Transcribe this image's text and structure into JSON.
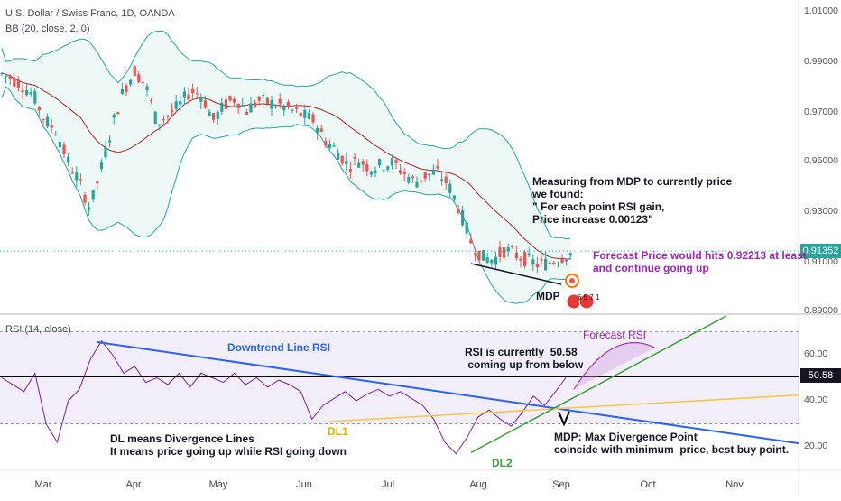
{
  "header": {
    "symbol_title": "U.S. Dollar / Swiss Franc, 1D, OANDA",
    "bb_label": "BB (20, close, 2, 0)",
    "rsi_label": "RSI (14, close)"
  },
  "price_axis": {
    "ticks": [
      "1.01000",
      "0.99000",
      "0.97000",
      "0.95000",
      "0.93000",
      "0.91000",
      "0.89000"
    ],
    "current_price": "0.91352",
    "current_price_color": "#26a69a"
  },
  "rsi_axis": {
    "ticks": [
      "60.00",
      "40.00",
      "20.00"
    ],
    "current_value": "50.58"
  },
  "time_axis": {
    "ticks": [
      "Mar",
      "Apr",
      "May",
      "Jun",
      "Jul",
      "Aug",
      "Sep",
      "Oct",
      "Nov"
    ]
  },
  "annotations": {
    "measuring": "Measuring from MDP to currently price\nwe found:\n\" For each point RSI gain,\nPrice increase 0.00123\"",
    "forecast_price": "Forecast Price would hits 0.92213 at least\nand continue going up",
    "mdp": "MDP",
    "downtrend": "Downtrend Line RSI",
    "forecast_rsi": "Forecast RSI",
    "rsi_current": "RSI is currently  50.58\n coming up from below",
    "dl_meaning": "DL means Divergence Lines\nIt means price going up while RSI going down",
    "dl1": "DL1",
    "dl2": "DL2",
    "mdp_meaning": "MDP: Max Divergence Point\ncoincide with minimum  price, best buy point.",
    "event_badge": "6 5 7 1"
  },
  "colors": {
    "up_candle": "#26a69a",
    "down_candle": "#ef5350",
    "bb_basis": "#a52a2a",
    "bb_band": "#26a69a",
    "rsi_line": "#7b1fa2",
    "downtrend": "#2962ff",
    "dl1": "#f9c642",
    "dl2": "#3a9d3a",
    "forecast": "#9c27b0"
  },
  "chart_data": [
    {
      "type": "candlestick",
      "title": "U.S. Dollar / Swiss Franc, 1D, OANDA",
      "ylim": [
        0.888,
        1.015
      ],
      "x_months": [
        "Mar",
        "Apr",
        "May",
        "Jun",
        "Jul",
        "Aug",
        "Sep",
        "Oct",
        "Nov"
      ],
      "close_path": [
        0.985,
        0.983,
        0.98,
        0.976,
        0.966,
        0.962,
        0.95,
        0.942,
        0.931,
        0.946,
        0.964,
        0.978,
        0.986,
        0.98,
        0.965,
        0.968,
        0.972,
        0.978,
        0.976,
        0.966,
        0.972,
        0.975,
        0.97,
        0.974,
        0.973,
        0.972,
        0.97,
        0.968,
        0.966,
        0.958,
        0.954,
        0.948,
        0.95,
        0.947,
        0.948,
        0.949,
        0.945,
        0.941,
        0.944,
        0.945,
        0.94,
        0.93,
        0.917,
        0.911,
        0.91,
        0.914,
        0.912,
        0.91,
        0.908,
        0.909,
        0.911,
        0.913
      ],
      "last_price": 0.91352,
      "bollinger": {
        "period": 20,
        "mult": 2
      }
    },
    {
      "type": "line",
      "title": "RSI (14, close)",
      "ylim": [
        10,
        70
      ],
      "series": [
        {
          "name": "RSI (14, close)",
          "values": [
            50,
            47,
            44,
            52,
            30,
            22,
            40,
            45,
            58,
            66,
            60,
            52,
            55,
            48,
            50,
            47,
            52,
            46,
            52,
            50,
            48,
            52,
            47,
            50,
            46,
            49,
            47,
            44,
            32,
            38,
            41,
            44,
            40,
            43,
            45,
            42,
            44,
            41,
            38,
            32,
            22,
            17,
            24,
            33,
            36,
            32,
            29,
            35,
            42,
            38,
            44,
            50.58
          ]
        }
      ],
      "current": 50.58,
      "levels": [
        30,
        70
      ]
    }
  ]
}
